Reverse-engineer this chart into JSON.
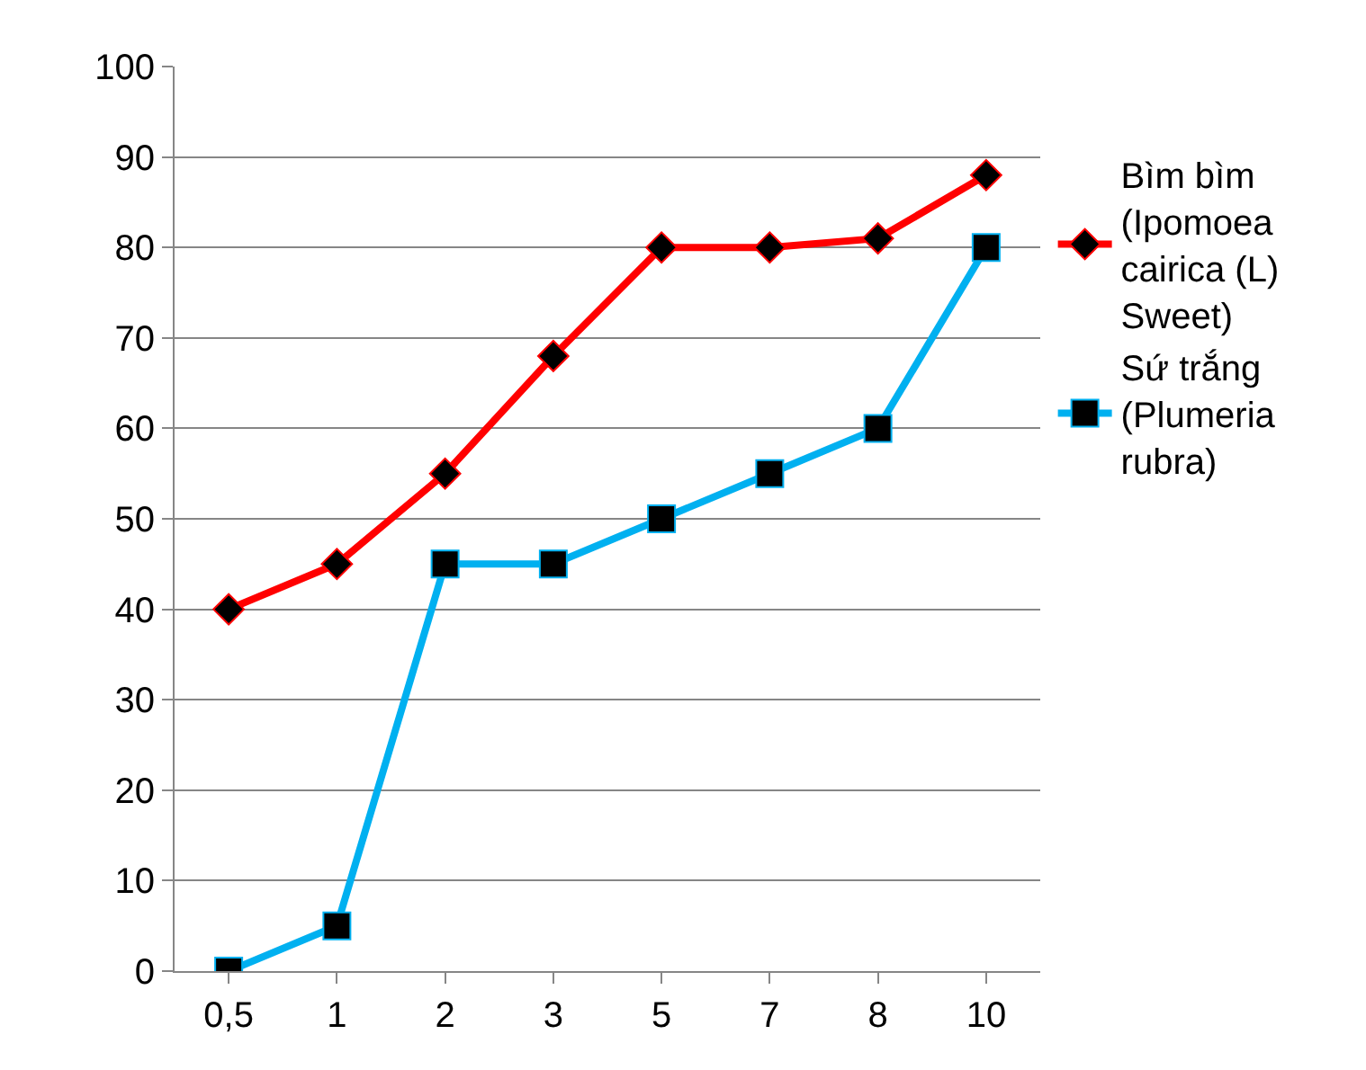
{
  "chart_data": {
    "type": "line",
    "categories": [
      "0,5",
      "1",
      "2",
      "3",
      "5",
      "7",
      "8",
      "10"
    ],
    "series": [
      {
        "name": "Bìm bìm (Ipomoea cairica (L) Sweet)",
        "color": "#ff0000",
        "marker": "diamond",
        "values": [
          40,
          45,
          55,
          68,
          80,
          80,
          81,
          88
        ]
      },
      {
        "name": "Sứ trắng (Plumeria rubra)",
        "color": "#00b0f0",
        "marker": "square",
        "values": [
          0,
          5,
          45,
          45,
          50,
          55,
          60,
          80
        ]
      }
    ],
    "ylim": [
      0,
      100
    ],
    "yticks": [
      0,
      10,
      20,
      30,
      40,
      50,
      60,
      70,
      80,
      90,
      100
    ],
    "grid": "y",
    "legend": "right",
    "line_style": "solid"
  }
}
